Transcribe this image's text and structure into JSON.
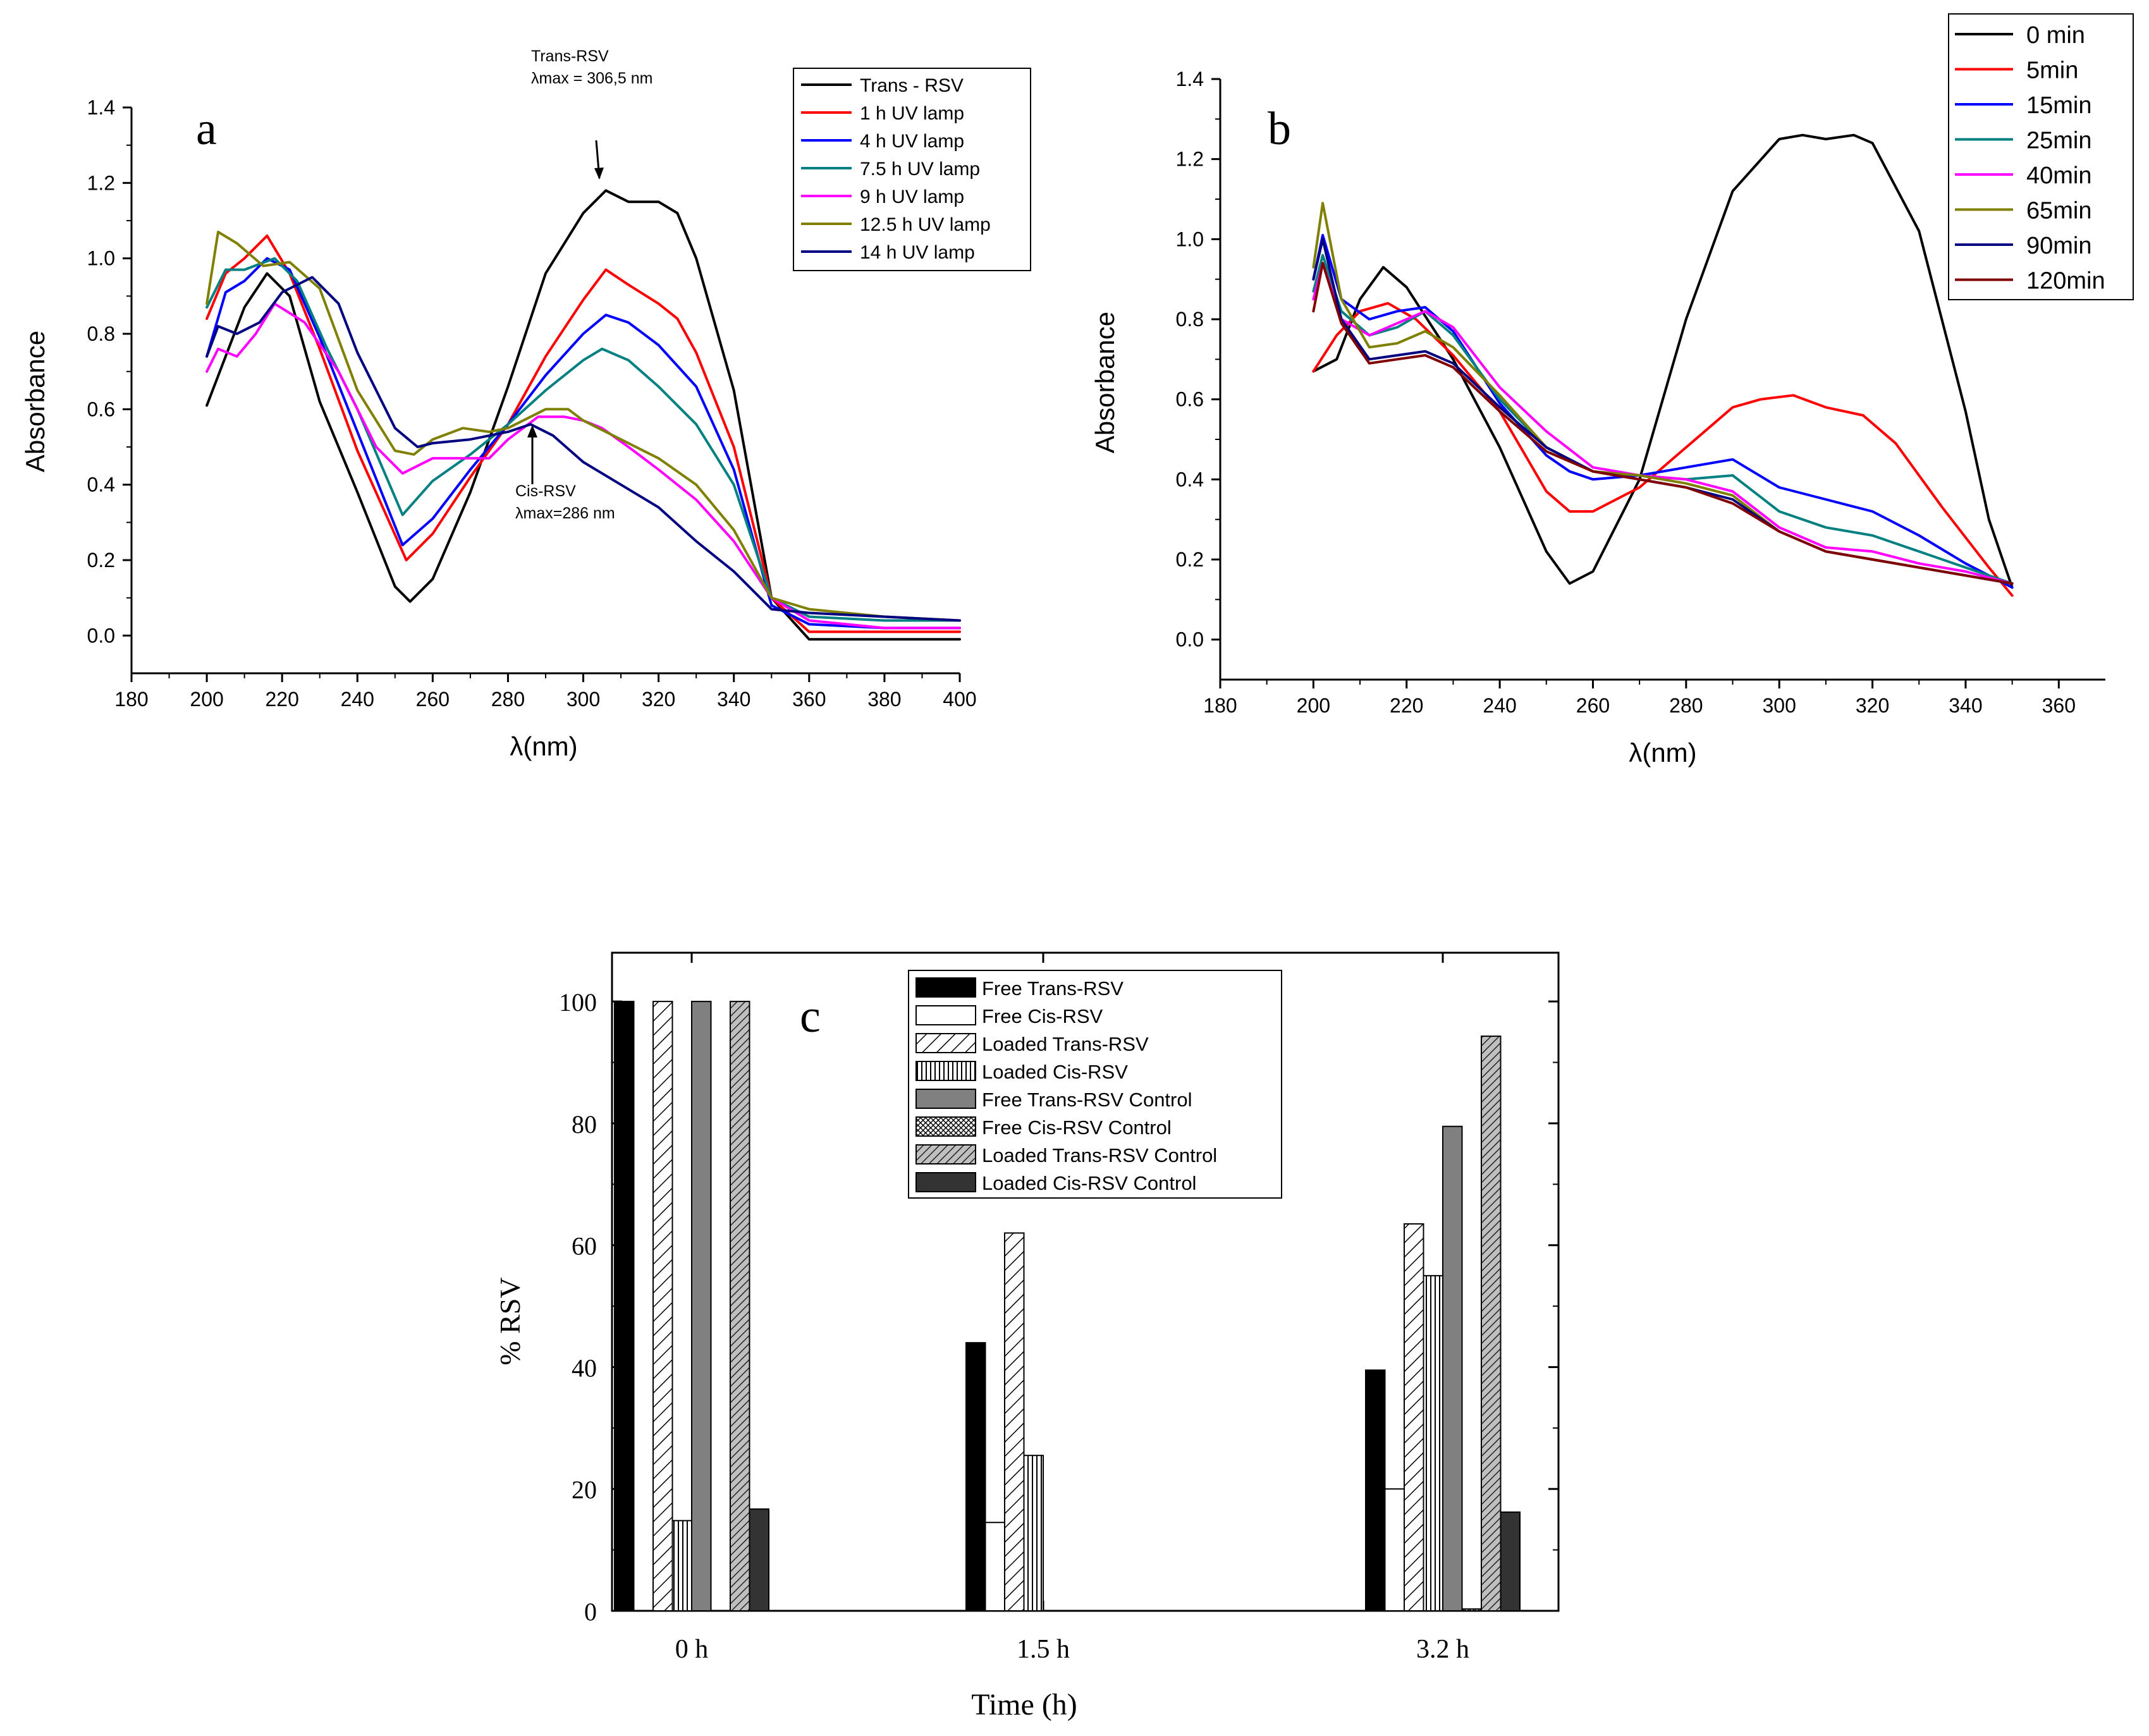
{
  "colors": {
    "black": "#000000",
    "red": "#ff0000",
    "blue": "#0000ff",
    "teal": "#008080",
    "magenta": "#ff00ff",
    "olive": "#808000",
    "navy": "#000080",
    "maroon": "#800000",
    "bar_dark_gray": "#808080",
    "bar_charcoal": "#333333"
  },
  "chart_data": [
    {
      "id": "a",
      "type": "line",
      "panel_label": "a",
      "xlabel": "λ(nm)",
      "ylabel": "Absorbance",
      "xlim": [
        180,
        400
      ],
      "ylim": [
        -0.1,
        1.4
      ],
      "xticks": [
        "180",
        "200",
        "220",
        "240",
        "260",
        "280",
        "300",
        "320",
        "340",
        "360",
        "380",
        "400"
      ],
      "yticks": [
        "0.0",
        "0.2",
        "0.4",
        "0.6",
        "0.8",
        "1.0",
        "1.2",
        "1.4"
      ],
      "legend_position": "top-right",
      "annotations": {
        "trans_title": "Trans-RSV",
        "trans_lambda": "λmax = 306,5 nm",
        "cis_title": "Cis-RSV",
        "cis_lambda": "λmax=286 nm"
      },
      "series": [
        {
          "name": "Trans - RSV",
          "color": "#000000",
          "x": [
            200,
            210,
            216,
            222,
            230,
            240,
            250,
            254,
            260,
            270,
            280,
            290,
            300,
            306,
            312,
            320,
            325,
            330,
            340,
            350,
            360,
            370,
            380,
            400
          ],
          "y": [
            0.61,
            0.87,
            0.96,
            0.9,
            0.62,
            0.38,
            0.13,
            0.09,
            0.15,
            0.38,
            0.66,
            0.96,
            1.12,
            1.18,
            1.15,
            1.15,
            1.12,
            1.0,
            0.65,
            0.1,
            -0.01,
            -0.01,
            -0.01,
            -0.01
          ]
        },
        {
          "name": "1 h UV lamp",
          "color": "#ff0000",
          "x": [
            200,
            205,
            210,
            216,
            222,
            230,
            240,
            253,
            260,
            270,
            280,
            290,
            300,
            306,
            312,
            320,
            325,
            330,
            340,
            350,
            360,
            380,
            400
          ],
          "y": [
            0.84,
            0.96,
            1.0,
            1.06,
            0.96,
            0.76,
            0.49,
            0.2,
            0.27,
            0.42,
            0.56,
            0.74,
            0.89,
            0.97,
            0.93,
            0.88,
            0.84,
            0.75,
            0.5,
            0.1,
            0.01,
            0.01,
            0.01
          ]
        },
        {
          "name": "4 h UV lamp",
          "color": "#0000ff",
          "x": [
            200,
            205,
            210,
            216,
            222,
            230,
            240,
            252,
            260,
            270,
            280,
            290,
            300,
            306,
            312,
            320,
            330,
            340,
            350,
            360,
            380,
            400
          ],
          "y": [
            0.74,
            0.91,
            0.94,
            1.0,
            0.97,
            0.79,
            0.54,
            0.24,
            0.31,
            0.44,
            0.56,
            0.69,
            0.8,
            0.85,
            0.83,
            0.77,
            0.66,
            0.44,
            0.08,
            0.03,
            0.02,
            0.02
          ]
        },
        {
          "name": "7.5 h UV lamp",
          "color": "#008080",
          "x": [
            200,
            205,
            210,
            218,
            224,
            232,
            240,
            252,
            260,
            270,
            280,
            290,
            300,
            305,
            312,
            320,
            330,
            340,
            350,
            360,
            380,
            400
          ],
          "y": [
            0.87,
            0.97,
            0.97,
            1.0,
            0.94,
            0.76,
            0.6,
            0.32,
            0.41,
            0.48,
            0.56,
            0.65,
            0.73,
            0.76,
            0.73,
            0.66,
            0.56,
            0.4,
            0.1,
            0.05,
            0.04,
            0.04
          ]
        },
        {
          "name": "9 h UV lamp",
          "color": "#ff00ff",
          "x": [
            200,
            203,
            208,
            213,
            218,
            226,
            235,
            245,
            252,
            260,
            268,
            275,
            280,
            288,
            295,
            300,
            305,
            312,
            320,
            330,
            340,
            350,
            360,
            380,
            400
          ],
          "y": [
            0.7,
            0.76,
            0.74,
            0.8,
            0.88,
            0.83,
            0.7,
            0.5,
            0.43,
            0.47,
            0.47,
            0.47,
            0.52,
            0.58,
            0.58,
            0.57,
            0.55,
            0.5,
            0.44,
            0.36,
            0.25,
            0.1,
            0.04,
            0.02,
            0.02
          ]
        },
        {
          "name": "12.5 h UV lamp",
          "color": "#808000",
          "x": [
            200,
            203,
            208,
            215,
            222,
            230,
            240,
            250,
            255,
            260,
            268,
            275,
            280,
            290,
            296,
            300,
            310,
            320,
            330,
            340,
            350,
            360,
            380,
            400
          ],
          "y": [
            0.88,
            1.07,
            1.04,
            0.98,
            0.99,
            0.92,
            0.65,
            0.49,
            0.48,
            0.52,
            0.55,
            0.54,
            0.55,
            0.6,
            0.6,
            0.57,
            0.52,
            0.47,
            0.4,
            0.28,
            0.1,
            0.07,
            0.05,
            0.04
          ]
        },
        {
          "name": "14 h UV lamp",
          "color": "#000080",
          "x": [
            200,
            203,
            208,
            214,
            220,
            228,
            235,
            240,
            250,
            256,
            260,
            270,
            280,
            286,
            292,
            300,
            310,
            320,
            330,
            340,
            350,
            360,
            380,
            400
          ],
          "y": [
            0.74,
            0.82,
            0.8,
            0.83,
            0.91,
            0.95,
            0.88,
            0.75,
            0.55,
            0.5,
            0.51,
            0.52,
            0.54,
            0.56,
            0.53,
            0.46,
            0.4,
            0.34,
            0.25,
            0.17,
            0.07,
            0.06,
            0.05,
            0.04
          ]
        }
      ]
    },
    {
      "id": "b",
      "type": "line",
      "panel_label": "b",
      "xlabel": "λ(nm)",
      "ylabel": "Absorbance",
      "xlim": [
        180,
        370
      ],
      "ylim": [
        -0.1,
        1.4
      ],
      "xticks": [
        "180",
        "200",
        "220",
        "240",
        "260",
        "280",
        "300",
        "320",
        "340",
        "360"
      ],
      "yticks": [
        "0.0",
        "0.2",
        "0.4",
        "0.6",
        "0.8",
        "1.0",
        "1.2",
        "1.4"
      ],
      "legend_position": "top-right",
      "series": [
        {
          "name": "0 min",
          "color": "#000000",
          "x": [
            200,
            205,
            210,
            215,
            220,
            230,
            240,
            250,
            255,
            260,
            270,
            280,
            290,
            300,
            305,
            310,
            316,
            320,
            330,
            340,
            345,
            350
          ],
          "y": [
            0.67,
            0.7,
            0.85,
            0.93,
            0.88,
            0.7,
            0.48,
            0.22,
            0.14,
            0.17,
            0.4,
            0.8,
            1.12,
            1.25,
            1.26,
            1.25,
            1.26,
            1.24,
            1.02,
            0.57,
            0.3,
            0.13
          ]
        },
        {
          "name": "5min",
          "color": "#ff0000",
          "x": [
            200,
            205,
            210,
            216,
            222,
            230,
            240,
            250,
            255,
            260,
            270,
            280,
            290,
            296,
            303,
            310,
            318,
            325,
            335,
            345,
            350
          ],
          "y": [
            0.67,
            0.76,
            0.82,
            0.84,
            0.8,
            0.71,
            0.57,
            0.37,
            0.32,
            0.32,
            0.38,
            0.48,
            0.58,
            0.6,
            0.61,
            0.58,
            0.56,
            0.49,
            0.33,
            0.18,
            0.11
          ]
        },
        {
          "name": "15min",
          "color": "#0000ff",
          "x": [
            200,
            202,
            206,
            212,
            218,
            224,
            230,
            240,
            250,
            255,
            260,
            270,
            280,
            290,
            300,
            310,
            320,
            330,
            340,
            350
          ],
          "y": [
            0.9,
            1.01,
            0.85,
            0.8,
            0.82,
            0.83,
            0.77,
            0.59,
            0.46,
            0.42,
            0.4,
            0.41,
            0.43,
            0.45,
            0.38,
            0.35,
            0.32,
            0.26,
            0.19,
            0.13
          ]
        },
        {
          "name": "25min",
          "color": "#008080",
          "x": [
            200,
            202,
            206,
            212,
            218,
            224,
            230,
            240,
            250,
            260,
            270,
            280,
            290,
            300,
            310,
            320,
            330,
            340,
            350
          ],
          "y": [
            0.87,
            0.96,
            0.82,
            0.76,
            0.78,
            0.82,
            0.76,
            0.6,
            0.48,
            0.42,
            0.41,
            0.4,
            0.41,
            0.32,
            0.28,
            0.26,
            0.22,
            0.18,
            0.14
          ]
        },
        {
          "name": "40min",
          "color": "#ff00ff",
          "x": [
            200,
            202,
            206,
            212,
            218,
            224,
            230,
            240,
            250,
            260,
            270,
            280,
            290,
            300,
            310,
            320,
            330,
            340,
            350
          ],
          "y": [
            0.85,
            0.94,
            0.8,
            0.76,
            0.79,
            0.82,
            0.78,
            0.63,
            0.52,
            0.43,
            0.41,
            0.4,
            0.37,
            0.28,
            0.23,
            0.22,
            0.19,
            0.17,
            0.14
          ]
        },
        {
          "name": "65min",
          "color": "#808000",
          "x": [
            200,
            202,
            206,
            212,
            218,
            224,
            230,
            240,
            250,
            260,
            270,
            280,
            290,
            300,
            310,
            320,
            330,
            340,
            350
          ],
          "y": [
            0.93,
            1.09,
            0.85,
            0.73,
            0.74,
            0.77,
            0.73,
            0.61,
            0.48,
            0.42,
            0.41,
            0.39,
            0.36,
            0.27,
            0.22,
            0.2,
            0.18,
            0.16,
            0.14
          ]
        },
        {
          "name": "90min",
          "color": "#000080",
          "x": [
            200,
            202,
            206,
            212,
            218,
            224,
            230,
            240,
            250,
            260,
            270,
            280,
            290,
            300,
            310,
            320,
            330,
            340,
            350
          ],
          "y": [
            0.9,
            1.0,
            0.8,
            0.7,
            0.71,
            0.72,
            0.69,
            0.58,
            0.48,
            0.42,
            0.4,
            0.38,
            0.35,
            0.27,
            0.22,
            0.2,
            0.18,
            0.16,
            0.14
          ]
        },
        {
          "name": "120min",
          "color": "#800000",
          "x": [
            200,
            202,
            206,
            212,
            218,
            224,
            230,
            240,
            250,
            260,
            270,
            280,
            290,
            300,
            310,
            320,
            330,
            340,
            350
          ],
          "y": [
            0.82,
            0.94,
            0.79,
            0.69,
            0.7,
            0.71,
            0.68,
            0.57,
            0.47,
            0.42,
            0.4,
            0.38,
            0.34,
            0.27,
            0.22,
            0.2,
            0.18,
            0.16,
            0.14
          ]
        }
      ]
    },
    {
      "id": "c",
      "type": "bar",
      "panel_label": "c",
      "xlabel": "Time (h)",
      "ylabel": "% RSV",
      "ylim": [
        0,
        108
      ],
      "yticks": [
        "0",
        "20",
        "40",
        "60",
        "80",
        "100"
      ],
      "categories": [
        "0 h",
        "1.5 h",
        "3.2 h"
      ],
      "legend_position": "top-center",
      "series": [
        {
          "name": "Free Trans-RSV",
          "pattern": "solid-black",
          "values": [
            100,
            44,
            39.5
          ]
        },
        {
          "name": "Free Cis-RSV",
          "pattern": "white",
          "values": [
            0,
            14.5,
            20
          ]
        },
        {
          "name": "Loaded Trans-RSV",
          "pattern": "diag-sparse",
          "values": [
            100,
            62,
            63.5
          ]
        },
        {
          "name": "Loaded Cis-RSV",
          "pattern": "vertical",
          "values": [
            14.8,
            25.5,
            55
          ]
        },
        {
          "name": "Free Trans-RSV Control",
          "pattern": "solid-gray",
          "values": [
            100,
            0,
            79.5
          ]
        },
        {
          "name": "Free Cis-RSV Control",
          "pattern": "crosshatch",
          "values": [
            0,
            0,
            0.3
          ]
        },
        {
          "name": "Loaded Trans-RSV Control",
          "pattern": "diag-dense",
          "values": [
            100,
            0,
            94.3
          ]
        },
        {
          "name": "Loaded Cis-RSV Control",
          "pattern": "solid-charcoal",
          "values": [
            16.7,
            0,
            16.2
          ]
        }
      ]
    }
  ]
}
